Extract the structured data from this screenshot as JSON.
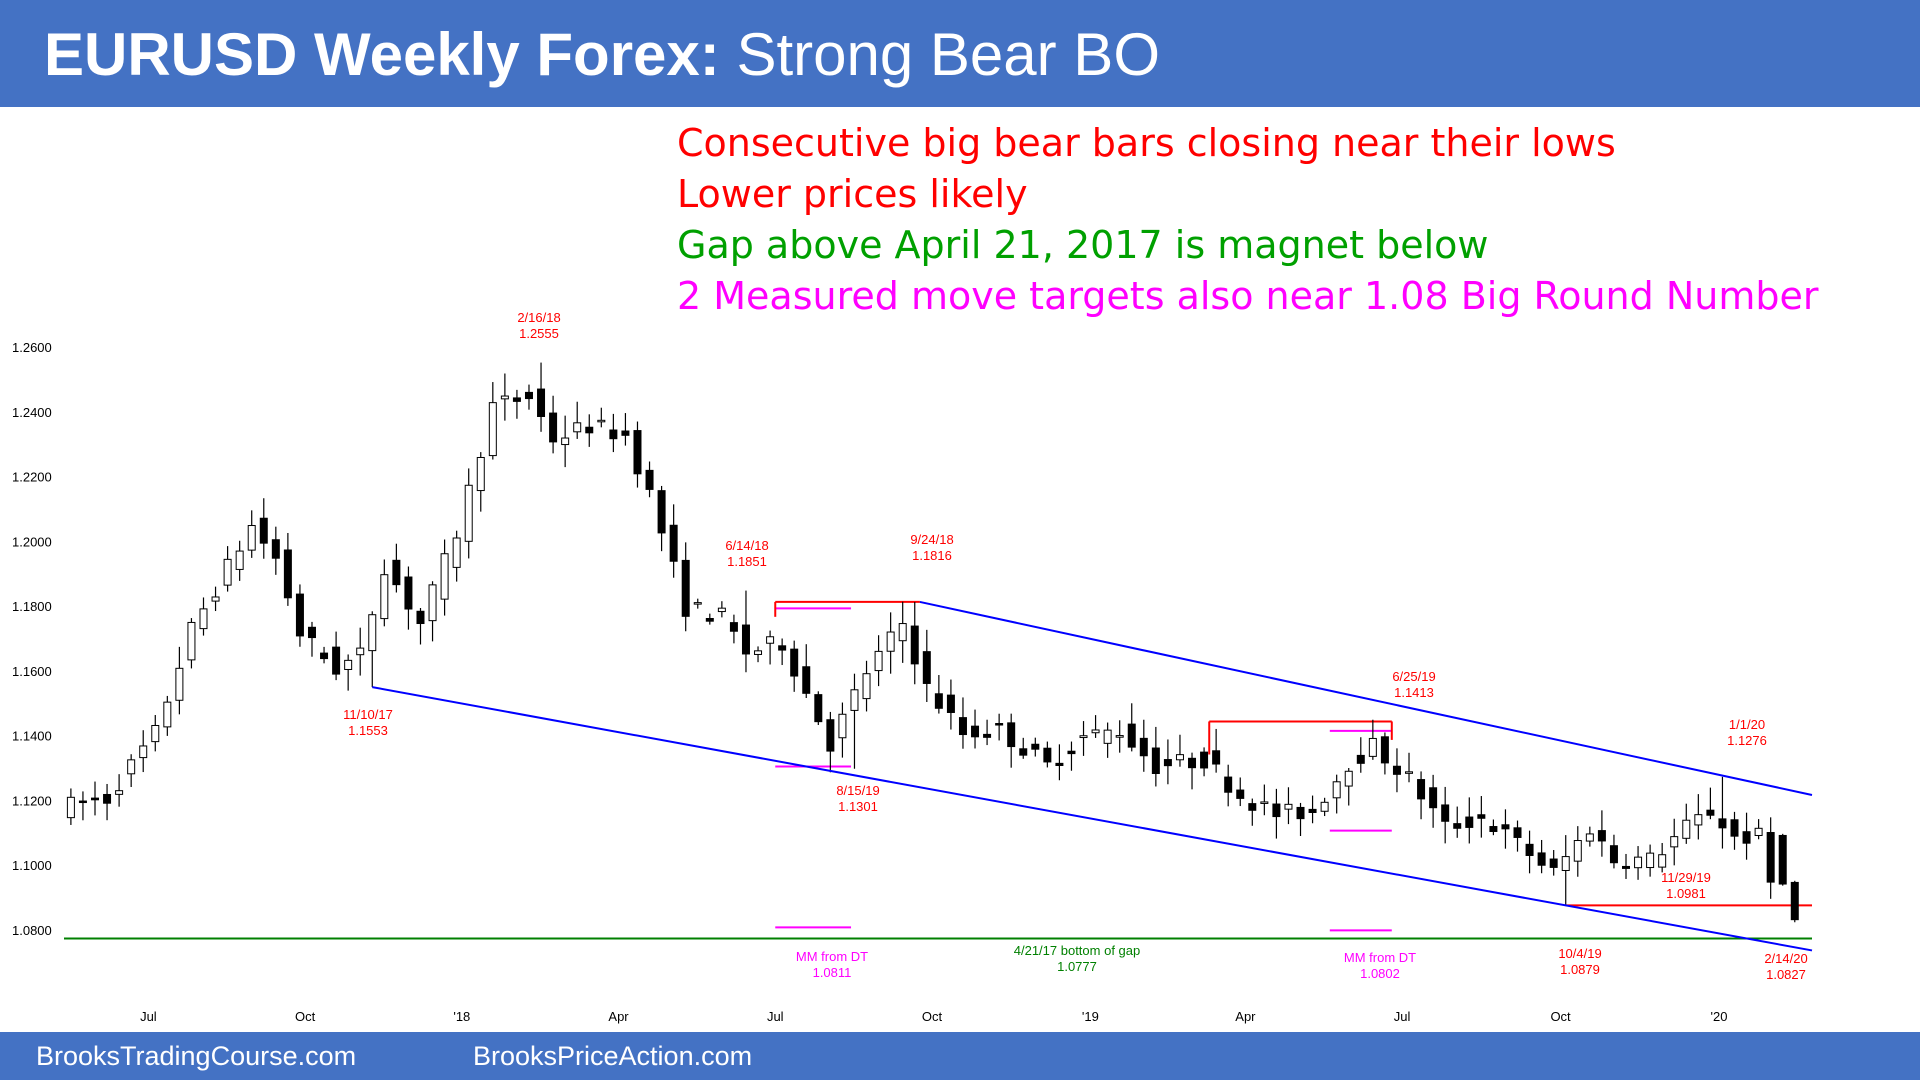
{
  "header": {
    "title_bold": "EURUSD Weekly Forex:",
    "title_rest": "Strong Bear BO",
    "bg_color": "#4472c4"
  },
  "footer": {
    "left_link": "BrooksTradingCourse.com",
    "right_link": "BrooksPriceAction.com"
  },
  "notes": [
    {
      "text": "Consecutive big bear bars closing near their lows",
      "color": "#ff0000"
    },
    {
      "text": "Lower prices likely",
      "color": "#ff0000"
    },
    {
      "text": "Gap above April 21, 2017 is magnet below",
      "color": "#00a000"
    },
    {
      "text": "2 Measured move targets also near 1.08 Big Round Number",
      "color": "#ff00ff"
    }
  ],
  "chart_data": {
    "type": "candlestick",
    "y_ticks": [
      "1.2600",
      "1.2400",
      "1.2200",
      "1.2000",
      "1.1800",
      "1.1600",
      "1.1400",
      "1.1200",
      "1.1000",
      "1.0800"
    ],
    "ylim": [
      1.074,
      1.262
    ],
    "x_ticks": [
      "Jul",
      "Oct",
      "'18",
      "Apr",
      "Jul",
      "Oct",
      "'19",
      "Apr",
      "Jul",
      "Oct",
      "'20"
    ],
    "x_range": [
      "2017-05-15",
      "2020-02-24"
    ],
    "tick_dates": [
      "2017-07-03",
      "2017-10-02",
      "2018-01-01",
      "2018-04-02",
      "2018-07-02",
      "2018-10-01",
      "2019-01-01",
      "2019-04-01",
      "2019-07-01",
      "2019-10-01",
      "2020-01-01"
    ],
    "price_path": [
      [
        "2017-05-19",
        1.118
      ],
      [
        "2017-06-16",
        1.121
      ],
      [
        "2017-07-14",
        1.141
      ],
      [
        "2017-08-04",
        1.173
      ],
      [
        "2017-09-08",
        1.205
      ],
      [
        "2017-09-22",
        1.195
      ],
      [
        "2017-10-06",
        1.172
      ],
      [
        "2017-10-27",
        1.161
      ],
      [
        "2017-11-10",
        1.165
      ],
      [
        "2017-11-24",
        1.193
      ],
      [
        "2017-12-15",
        1.175
      ],
      [
        "2018-01-05",
        1.203
      ],
      [
        "2018-01-26",
        1.242
      ],
      [
        "2018-02-16",
        1.245
      ],
      [
        "2018-03-02",
        1.232
      ],
      [
        "2018-03-23",
        1.236
      ],
      [
        "2018-04-13",
        1.233
      ],
      [
        "2018-04-27",
        1.215
      ],
      [
        "2018-05-18",
        1.18
      ],
      [
        "2018-06-08",
        1.177
      ],
      [
        "2018-06-22",
        1.166
      ],
      [
        "2018-07-13",
        1.169
      ],
      [
        "2018-08-10",
        1.138
      ],
      [
        "2018-08-31",
        1.16
      ],
      [
        "2018-09-21",
        1.175
      ],
      [
        "2018-10-05",
        1.155
      ],
      [
        "2018-10-26",
        1.141
      ],
      [
        "2018-11-16",
        1.142
      ],
      [
        "2018-12-14",
        1.131
      ],
      [
        "2019-01-04",
        1.14
      ],
      [
        "2019-01-25",
        1.142
      ],
      [
        "2019-02-15",
        1.131
      ],
      [
        "2019-03-15",
        1.133
      ],
      [
        "2019-04-05",
        1.122
      ],
      [
        "2019-04-26",
        1.116
      ],
      [
        "2019-05-17",
        1.117
      ],
      [
        "2019-06-07",
        1.132
      ],
      [
        "2019-06-21",
        1.137
      ],
      [
        "2019-07-12",
        1.127
      ],
      [
        "2019-08-02",
        1.112
      ],
      [
        "2019-08-23",
        1.115
      ],
      [
        "2019-09-13",
        1.107
      ],
      [
        "2019-10-04",
        1.098
      ],
      [
        "2019-10-25",
        1.112
      ],
      [
        "2019-11-08",
        1.102
      ],
      [
        "2019-11-29",
        1.102
      ],
      [
        "2019-12-20",
        1.112
      ],
      [
        "2020-01-03",
        1.117
      ],
      [
        "2020-01-17",
        1.109
      ],
      [
        "2020-01-31",
        1.109
      ],
      [
        "2020-02-07",
        1.095
      ],
      [
        "2020-02-14",
        1.083
      ]
    ],
    "highlights": [
      {
        "label": "2/16/18",
        "value": "1.2555",
        "color": "#ff0000"
      },
      {
        "label": "11/10/17",
        "value": "1.1553",
        "color": "#ff0000"
      },
      {
        "label": "6/14/18",
        "value": "1.1851",
        "color": "#ff0000"
      },
      {
        "label": "9/24/18",
        "value": "1.1816",
        "color": "#ff0000"
      },
      {
        "label": "8/15/19",
        "value": "1.1301",
        "color": "#ff0000"
      },
      {
        "label": "6/25/19",
        "value": "1.1413",
        "color": "#ff0000"
      },
      {
        "label": "1/1/20",
        "value": "1.1276",
        "color": "#ff0000"
      },
      {
        "label": "11/29/19",
        "value": "1.0981",
        "color": "#ff0000"
      },
      {
        "label": "10/4/19",
        "value": "1.0879",
        "color": "#ff0000"
      },
      {
        "label": "2/14/20",
        "value": "1.0827",
        "color": "#ff0000"
      },
      {
        "label": "MM from DT",
        "value": "1.0811",
        "color": "#ff00ff"
      },
      {
        "label": "MM from DT",
        "value": "1.0802",
        "color": "#ff00ff"
      },
      {
        "label": "4/21/17 bottom of gap",
        "value": "1.0777",
        "color": "#008000"
      }
    ],
    "channel_lines": [
      {
        "from": [
          "2017-11-10",
          1.1553
        ],
        "to": [
          "2020-02-24",
          1.074
        ],
        "color": "#0000ff"
      },
      {
        "from": [
          "2018-09-24",
          1.1816
        ],
        "to": [
          "2020-02-24",
          1.122
        ],
        "color": "#0000ff"
      }
    ],
    "levels": [
      {
        "name": "gap-bottom-line",
        "from": "2017-05-15",
        "to": "2020-02-24",
        "y": 1.0777,
        "color": "#008000"
      },
      {
        "name": "double-top-line-2018",
        "from": "2018-07-02",
        "to": "2018-09-24",
        "y": 1.1816,
        "color": "#ff0000"
      },
      {
        "name": "double-top-line-2019",
        "from": "2019-03-11",
        "to": "2019-06-25",
        "y": 1.1447,
        "color": "#ff0000"
      },
      {
        "name": "support-line-1-0879",
        "from": "2019-10-04",
        "to": "2020-02-24",
        "y": 1.0879,
        "color": "#ff0000"
      },
      {
        "name": "mm-line-top-2018",
        "from": "2018-07-02",
        "to": "2018-08-15",
        "y": 1.1796,
        "color": "#ff00ff"
      },
      {
        "name": "mm-line-bottom-2018",
        "from": "2018-07-02",
        "to": "2018-08-15",
        "y": 1.1308,
        "color": "#ff00ff"
      },
      {
        "name": "mm-line-target-2018",
        "from": "2018-07-02",
        "to": "2018-08-15",
        "y": 1.0811,
        "color": "#ff00ff"
      },
      {
        "name": "mm-line-top-2019",
        "from": "2019-05-20",
        "to": "2019-06-25",
        "y": 1.1418,
        "color": "#ff00ff"
      },
      {
        "name": "mm-line-bottom-2019",
        "from": "2019-05-20",
        "to": "2019-06-25",
        "y": 1.111,
        "color": "#ff00ff"
      },
      {
        "name": "mm-line-target-2019",
        "from": "2019-05-20",
        "to": "2019-06-25",
        "y": 1.0802,
        "color": "#ff00ff"
      }
    ],
    "grid": false,
    "legend": "none"
  }
}
